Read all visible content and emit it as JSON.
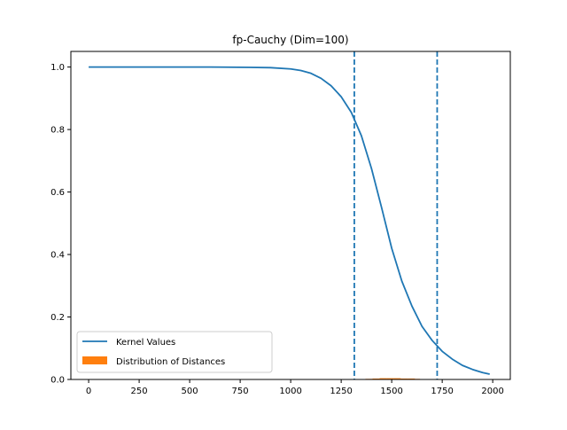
{
  "chart_data": {
    "type": "line",
    "title": "fp-Cauchy (Dim=100)",
    "xlabel": "",
    "ylabel": "",
    "xlim": [
      -88,
      2087
    ],
    "ylim": [
      0.0,
      1.05
    ],
    "x_ticks": [
      0,
      250,
      500,
      750,
      1000,
      1250,
      1500,
      1750,
      2000
    ],
    "x_tick_labels": [
      "0",
      "250",
      "500",
      "750",
      "1000",
      "1250",
      "1500",
      "1750",
      "2000"
    ],
    "y_ticks": [
      0.0,
      0.2,
      0.4,
      0.6,
      0.8,
      1.0
    ],
    "y_tick_labels": [
      "0.0",
      "0.2",
      "0.4",
      "0.6",
      "0.8",
      "1.0"
    ],
    "grid": false,
    "legend_placement": "lower-left",
    "series": [
      {
        "name": "Kernel Values",
        "kind": "line",
        "color": "#1f77b4",
        "x": [
          0,
          200,
          400,
          600,
          800,
          900,
          1000,
          1050,
          1100,
          1150,
          1200,
          1250,
          1300,
          1350,
          1400,
          1450,
          1500,
          1550,
          1600,
          1650,
          1700,
          1750,
          1800,
          1850,
          1900,
          1950,
          1985
        ],
        "y": [
          1.0,
          1.0,
          1.0,
          1.0,
          0.999,
          0.998,
          0.994,
          0.989,
          0.98,
          0.964,
          0.94,
          0.905,
          0.855,
          0.78,
          0.675,
          0.55,
          0.42,
          0.315,
          0.235,
          0.17,
          0.125,
          0.09,
          0.065,
          0.045,
          0.032,
          0.022,
          0.017
        ]
      },
      {
        "name": "Distribution of Distances",
        "kind": "histogram",
        "color": "#ff7f0e",
        "bins": [
          1370,
          1405,
          1440,
          1475,
          1510,
          1545,
          1580,
          1615,
          1640
        ],
        "values": [
          0.002,
          0.003,
          0.004,
          0.004,
          0.004,
          0.003,
          0.003,
          0.002
        ]
      }
    ],
    "vlines": [
      {
        "x": 1315,
        "color": "#1f77b4",
        "style": "dashed"
      },
      {
        "x": 1725,
        "color": "#1f77b4",
        "style": "dashed"
      }
    ]
  }
}
